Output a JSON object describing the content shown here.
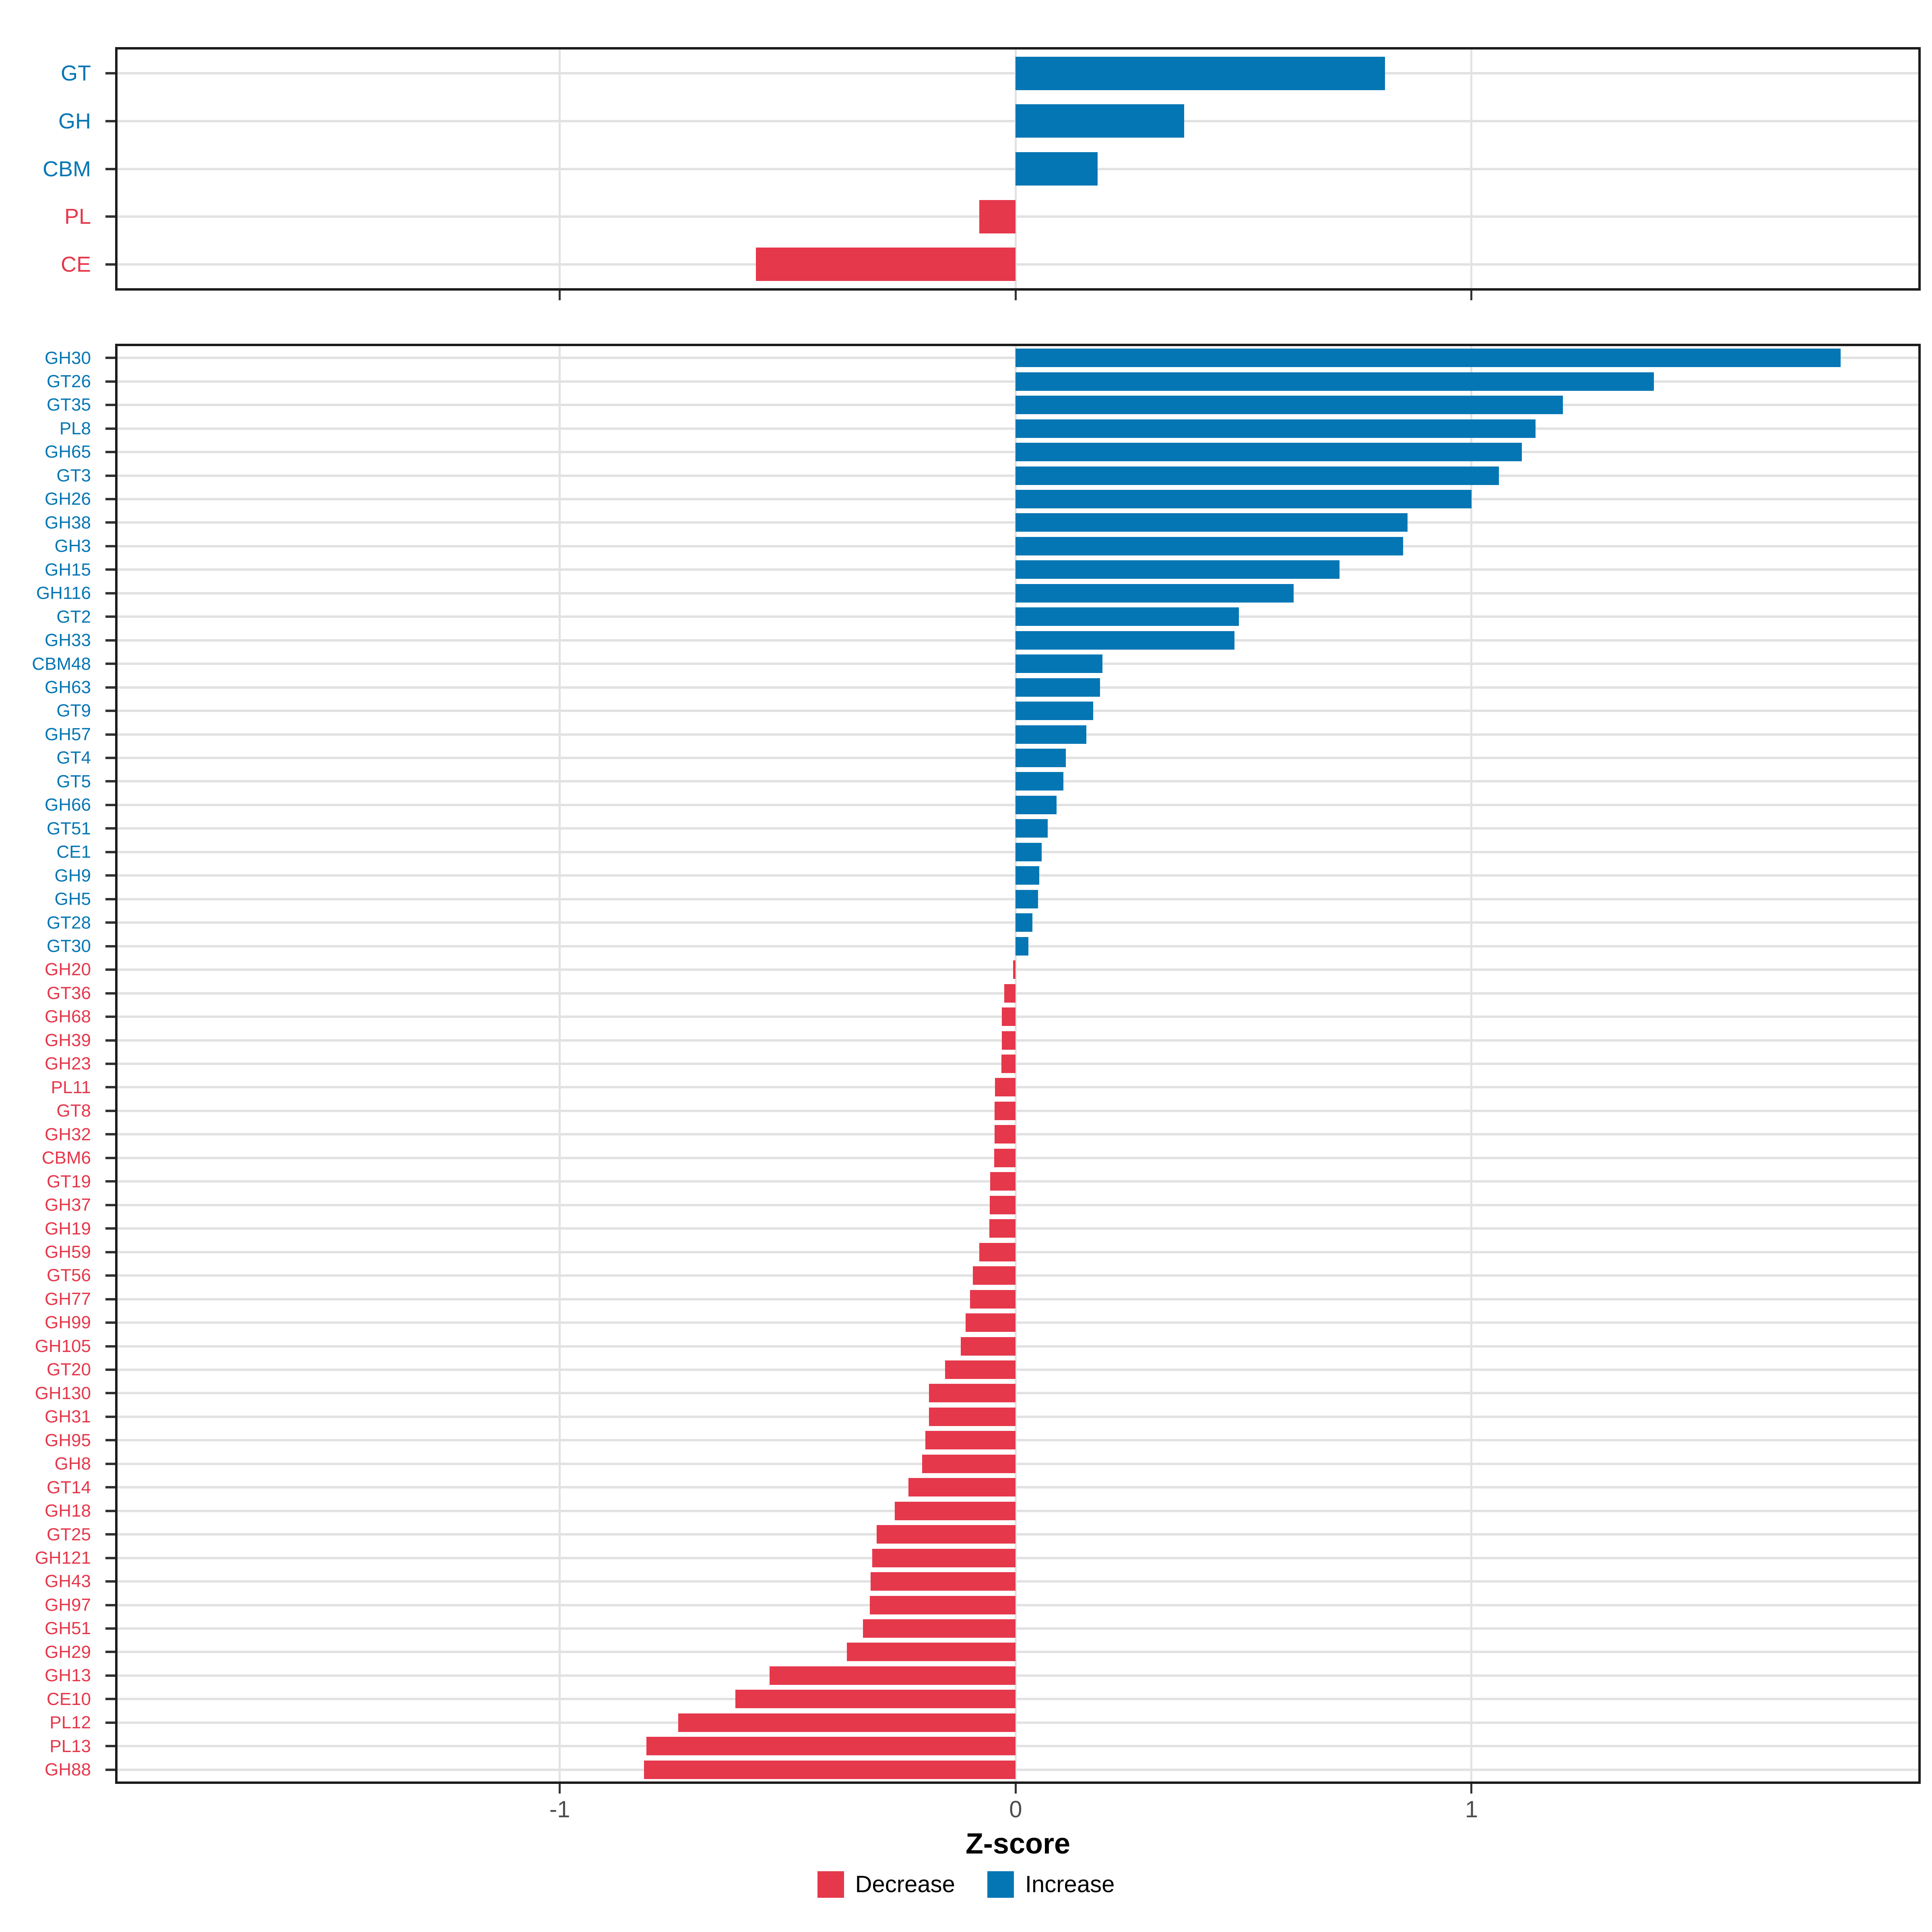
{
  "colors": {
    "increase": "#0576B4",
    "decrease": "#E5384B",
    "grid": "#E2E2E2",
    "panel_border": "#1C1C1C",
    "tick_mark": "#333333",
    "axis_tick_label": "#4D4D4D"
  },
  "x_axis": {
    "label": "Z-score",
    "ticks": [
      -1,
      0,
      1
    ],
    "tick_labels": [
      "-1",
      "0",
      "1"
    ],
    "xlim": [
      -1.97,
      1.98
    ]
  },
  "legend": [
    {
      "label": "Decrease",
      "color_key": "decrease"
    },
    {
      "label": "Increase",
      "color_key": "increase"
    }
  ],
  "chart_data": [
    {
      "type": "bar",
      "orientation": "horizontal",
      "panel": "top",
      "title": "",
      "xlabel": "Z-score",
      "ylabel": "",
      "grid": true,
      "legend_position": "bottom",
      "categories": [
        "GT",
        "GH",
        "CBM",
        "PL",
        "CE"
      ],
      "values": [
        0.81,
        0.37,
        0.18,
        -0.08,
        -0.57
      ]
    },
    {
      "type": "bar",
      "orientation": "horizontal",
      "panel": "bottom",
      "title": "",
      "xlabel": "Z-score",
      "ylabel": "",
      "grid": true,
      "legend_position": "bottom",
      "categories": [
        "GH30",
        "GT26",
        "GT35",
        "PL8",
        "GH65",
        "GT3",
        "GH26",
        "GH38",
        "GH3",
        "GH15",
        "GH116",
        "GT2",
        "GH33",
        "CBM48",
        "GH63",
        "GT9",
        "GH57",
        "GT4",
        "GT5",
        "GH66",
        "GT51",
        "CE1",
        "GH9",
        "GH5",
        "GT28",
        "GT30",
        "GH20",
        "GT36",
        "GH68",
        "GH39",
        "GH23",
        "PL11",
        "GT8",
        "GH32",
        "CBM6",
        "GT19",
        "GH37",
        "GH19",
        "GH59",
        "GT56",
        "GH77",
        "GH99",
        "GH105",
        "GT20",
        "GH130",
        "GH31",
        "GH95",
        "GH8",
        "GT14",
        "GH18",
        "GT25",
        "GH121",
        "GH43",
        "GH97",
        "GH51",
        "GH29",
        "GH13",
        "CE10",
        "PL12",
        "PL13",
        "GH88"
      ],
      "values": [
        1.81,
        1.4,
        1.2,
        1.14,
        1.11,
        1.06,
        1.0,
        0.86,
        0.85,
        0.71,
        0.61,
        0.49,
        0.48,
        0.19,
        0.185,
        0.17,
        0.155,
        0.11,
        0.105,
        0.09,
        0.07,
        0.057,
        0.052,
        0.049,
        0.037,
        0.028,
        -0.006,
        -0.025,
        -0.03,
        -0.03,
        -0.031,
        -0.045,
        -0.046,
        -0.046,
        -0.047,
        -0.056,
        -0.057,
        -0.058,
        -0.08,
        -0.094,
        -0.1,
        -0.11,
        -0.12,
        -0.155,
        -0.19,
        -0.19,
        -0.198,
        -0.205,
        -0.235,
        -0.265,
        -0.305,
        -0.315,
        -0.318,
        -0.32,
        -0.335,
        -0.37,
        -0.54,
        -0.615,
        -0.74,
        -0.81,
        -0.815
      ]
    }
  ]
}
